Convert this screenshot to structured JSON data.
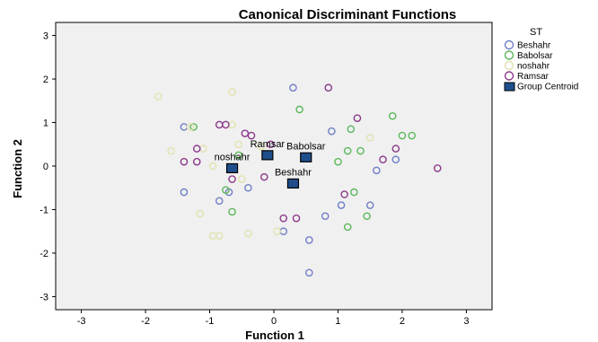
{
  "chart_data": {
    "type": "scatter",
    "title": "Canonical Discriminant Functions",
    "xlabel": "Function 1",
    "ylabel": "Function 2",
    "xlim": [
      -3.4,
      3.4
    ],
    "ylim": [
      -3.3,
      3.3
    ],
    "xticks": [
      -3,
      -2,
      -1,
      0,
      1,
      2,
      3
    ],
    "yticks": [
      -3,
      -2,
      -1,
      0,
      1,
      2,
      3
    ],
    "plot_background": "#f0f0f0",
    "legend_title": "ST",
    "legend_position": "right",
    "series": [
      {
        "name": "Beshahr",
        "color": "#6f7fc6",
        "marker": "open-circle",
        "points": [
          [
            0.3,
            1.8
          ],
          [
            -1.4,
            0.9
          ],
          [
            0.9,
            0.8
          ],
          [
            1.6,
            -0.1
          ],
          [
            1.9,
            0.15
          ],
          [
            -1.4,
            -0.6
          ],
          [
            -0.4,
            -0.5
          ],
          [
            -0.85,
            -0.8
          ],
          [
            0.15,
            -1.5
          ],
          [
            1.05,
            -0.9
          ],
          [
            0.55,
            -1.7
          ],
          [
            0.55,
            -2.45
          ],
          [
            1.5,
            -0.9
          ],
          [
            0.8,
            -1.15
          ],
          [
            -0.7,
            -0.6
          ]
        ]
      },
      {
        "name": "Babolsar",
        "color": "#5cb85c",
        "marker": "open-circle",
        "points": [
          [
            0.4,
            1.3
          ],
          [
            1.85,
            1.15
          ],
          [
            2.0,
            0.7
          ],
          [
            2.15,
            0.7
          ],
          [
            1.2,
            0.85
          ],
          [
            1.35,
            0.35
          ],
          [
            1.15,
            0.35
          ],
          [
            1.0,
            0.1
          ],
          [
            -1.25,
            0.9
          ],
          [
            -0.55,
            0.25
          ],
          [
            1.25,
            -0.6
          ],
          [
            -0.75,
            -0.55
          ],
          [
            -0.65,
            -1.05
          ],
          [
            1.45,
            -1.15
          ],
          [
            1.15,
            -1.4
          ]
        ]
      },
      {
        "name": "noshahr",
        "color": "#e2e2b0",
        "marker": "open-circle",
        "points": [
          [
            -1.8,
            1.6
          ],
          [
            -0.65,
            1.7
          ],
          [
            -1.6,
            0.35
          ],
          [
            -1.3,
            0.9
          ],
          [
            -0.65,
            0.95
          ],
          [
            -1.1,
            0.4
          ],
          [
            -0.55,
            0.5
          ],
          [
            1.5,
            0.65
          ],
          [
            -0.2,
            0.45
          ],
          [
            -0.95,
            0.0
          ],
          [
            -0.5,
            -0.3
          ],
          [
            -1.15,
            -1.1
          ],
          [
            -0.95,
            -1.6
          ],
          [
            -0.85,
            -1.6
          ],
          [
            -0.4,
            -1.55
          ],
          [
            0.05,
            -1.5
          ]
        ]
      },
      {
        "name": "Ramsar",
        "color": "#8b3a8b",
        "marker": "open-circle",
        "points": [
          [
            0.85,
            1.8
          ],
          [
            1.3,
            1.1
          ],
          [
            -0.85,
            0.95
          ],
          [
            -0.75,
            0.95
          ],
          [
            -0.45,
            0.75
          ],
          [
            -0.35,
            0.7
          ],
          [
            -1.2,
            0.4
          ],
          [
            -1.4,
            0.1
          ],
          [
            -1.2,
            0.1
          ],
          [
            1.7,
            0.15
          ],
          [
            1.9,
            0.4
          ],
          [
            2.55,
            -0.05
          ],
          [
            -0.65,
            -0.3
          ],
          [
            1.1,
            -0.65
          ],
          [
            0.35,
            -1.2
          ],
          [
            0.15,
            -1.2
          ],
          [
            -0.15,
            -0.25
          ],
          [
            -0.05,
            0.5
          ]
        ]
      },
      {
        "name": "Group Centroid",
        "color": "#1f4e8c",
        "marker": "filled-square",
        "points": [
          [
            0.5,
            0.2
          ],
          [
            -0.1,
            0.25
          ],
          [
            -0.65,
            -0.05
          ],
          [
            0.3,
            -0.4
          ]
        ]
      }
    ],
    "centroid_labels": [
      {
        "text": "Babolsar",
        "x": 0.5,
        "y": 0.2
      },
      {
        "text": "Ramsar",
        "x": -0.1,
        "y": 0.25
      },
      {
        "text": "noshahr",
        "x": -0.65,
        "y": -0.05
      },
      {
        "text": "Beshahr",
        "x": 0.3,
        "y": -0.4
      }
    ]
  }
}
